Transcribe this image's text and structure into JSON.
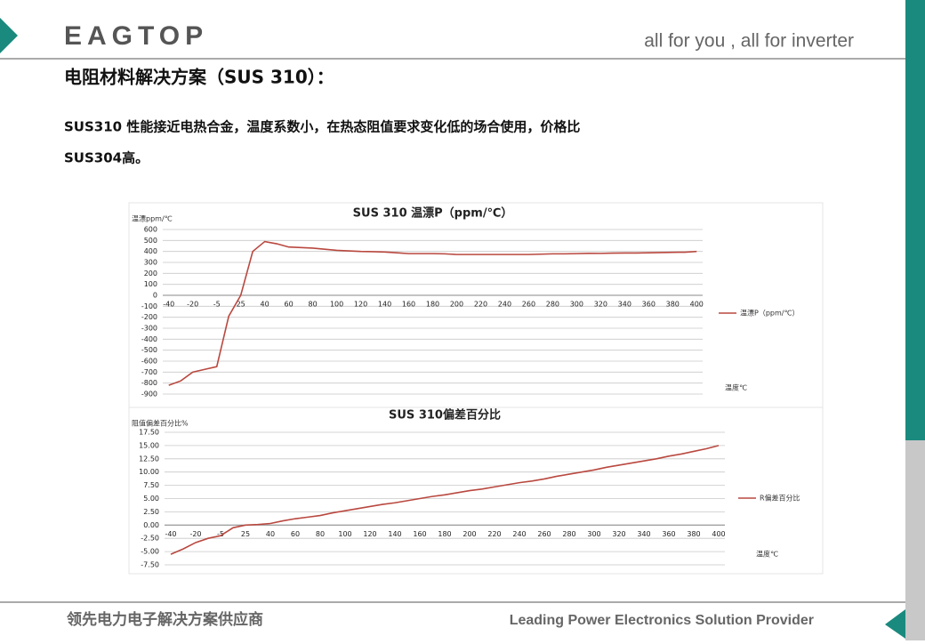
{
  "header": {
    "logo": "EAGTOP",
    "tagline": "all for you , all for inverter",
    "heading": "电阻材料解决方案（SUS 310）："
  },
  "body": {
    "lines": [
      "SUS310 性能接近电热合金，温度系数小，在热态阻值要求变化低的场合使用，价格比",
      "SUS304高。"
    ]
  },
  "footer": {
    "left": "领先电力电子解决方案供应商",
    "right": "Leading Power Electronics Solution Provider"
  },
  "chart_data": [
    {
      "type": "line",
      "title": "SUS 310 温漂P（ppm/℃）",
      "y_label": "温漂ppm/℃",
      "x_label": "温度℃",
      "categories": [
        "-40",
        null,
        "-20",
        null,
        "-5",
        null,
        "25",
        null,
        "40",
        null,
        "60",
        null,
        "80",
        null,
        "100",
        null,
        "120",
        null,
        "140",
        null,
        "160",
        null,
        "180",
        null,
        "200",
        null,
        "220",
        null,
        "240",
        null,
        "260",
        null,
        "280",
        null,
        "300",
        null,
        "320",
        null,
        "340",
        null,
        "360",
        null,
        "380",
        null,
        "400"
      ],
      "series": [
        {
          "name": "温漂P（ppm/℃）",
          "color": "#b9483f",
          "values": [
            -820,
            -780,
            -700,
            -675,
            -650,
            -190,
            0,
            400,
            490,
            470,
            440,
            435,
            430,
            420,
            410,
            405,
            400,
            398,
            395,
            388,
            380,
            380,
            380,
            378,
            372,
            372,
            372,
            372,
            372,
            372,
            372,
            375,
            378,
            378,
            380,
            383,
            382,
            385,
            386,
            386,
            388,
            390,
            392,
            393,
            400
          ]
        }
      ],
      "ylim": [
        -900,
        600
      ],
      "yticks": [
        600,
        500,
        400,
        300,
        200,
        100,
        0,
        -100,
        -200,
        -300,
        -400,
        -500,
        -600,
        -700,
        -800,
        -900
      ],
      "grid": true,
      "legend": "right"
    },
    {
      "type": "line",
      "title": "SUS 310偏差百分比",
      "y_label": "阻值偏差百分比%",
      "x_label": "温度℃",
      "categories": [
        "-40",
        null,
        "-20",
        null,
        "-5",
        null,
        "25",
        null,
        "40",
        null,
        "60",
        null,
        "80",
        null,
        "100",
        null,
        "120",
        null,
        "140",
        null,
        "160",
        null,
        "180",
        null,
        "200",
        null,
        "220",
        null,
        "240",
        null,
        "260",
        null,
        "280",
        null,
        "300",
        null,
        "320",
        null,
        "340",
        null,
        "360",
        null,
        "380",
        null,
        "400"
      ],
      "series": [
        {
          "name": "R偏差百分比",
          "color": "#b9483f",
          "values": [
            -5.5,
            -4.5,
            -3.3,
            -2.5,
            -2.0,
            -0.5,
            0.0,
            0.1,
            0.3,
            0.8,
            1.2,
            1.5,
            1.8,
            2.3,
            2.7,
            3.1,
            3.5,
            3.9,
            4.2,
            4.6,
            5.0,
            5.4,
            5.7,
            6.1,
            6.5,
            6.8,
            7.2,
            7.6,
            8.0,
            8.3,
            8.7,
            9.2,
            9.6,
            10.0,
            10.4,
            10.9,
            11.3,
            11.7,
            12.1,
            12.5,
            13.0,
            13.4,
            13.9,
            14.4,
            15.0
          ]
        }
      ],
      "ylim": [
        -7.5,
        17.5
      ],
      "yticks": [
        {
          "value": 17.5,
          "label": "17.50"
        },
        {
          "value": 15,
          "label": "15.00"
        },
        {
          "value": 12.5,
          "label": "12.50"
        },
        {
          "value": 10,
          "label": "10.00"
        },
        {
          "value": 7.5,
          "label": "7.50"
        },
        {
          "value": 5,
          "label": "5.00"
        },
        {
          "value": 2.5,
          "label": "2.50"
        },
        {
          "value": 0,
          "label": "0.00"
        },
        {
          "value": -2.5,
          "label": "-2.50"
        },
        {
          "value": -5,
          "label": "-5.00"
        },
        {
          "value": -7.5,
          "label": "-7.50"
        }
      ],
      "grid": true,
      "legend": "right"
    }
  ]
}
